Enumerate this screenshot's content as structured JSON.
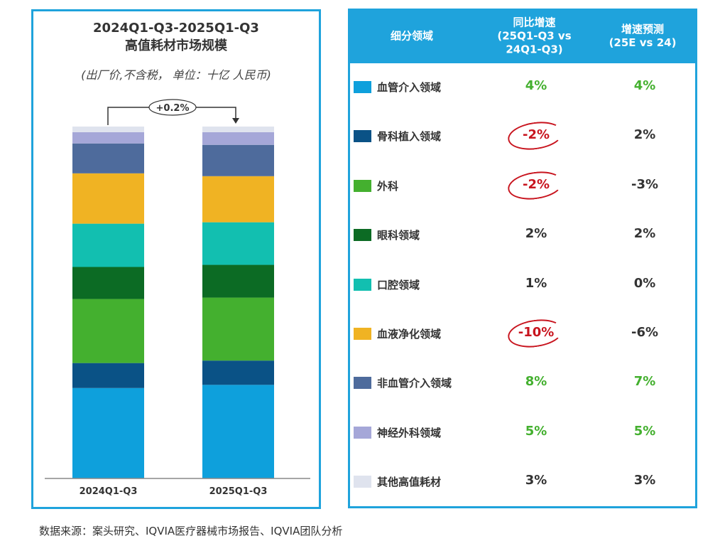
{
  "chart_data": {
    "type": "bar",
    "stacked": true,
    "title": "2024Q1-Q3-2025Q1-Q3 高值耗材市场规模",
    "title_line1": "2024Q1-Q3-2025Q1-Q3",
    "title_line2": "高值耗材市场规模",
    "subtitle": "(出厂价,不含税， 单位：十亿 人民币)",
    "categories": [
      "2024Q1-Q3",
      "2025Q1-Q3"
    ],
    "growth_annotation": "+0.2%",
    "values_note_unit": "estimated share of bar height, %",
    "series": [
      {
        "name": "血管介入领域",
        "color": "#0ea0dc",
        "values": [
          25.7,
          26.6
        ]
      },
      {
        "name": "骨科植入领域",
        "color": "#0a5286",
        "values": [
          7.1,
          6.9
        ]
      },
      {
        "name": "外科",
        "color": "#44b02f",
        "values": [
          18.2,
          17.9
        ]
      },
      {
        "name": "眼科领域",
        "color": "#0c6b24",
        "values": [
          9.1,
          9.3
        ]
      },
      {
        "name": "口腔领域",
        "color": "#12bfb0",
        "values": [
          12.3,
          12.1
        ]
      },
      {
        "name": "血液净化领域",
        "color": "#f0b323",
        "values": [
          14.3,
          13.1
        ]
      },
      {
        "name": "非血管介入领域",
        "color": "#4e6b9c",
        "values": [
          8.5,
          8.9
        ]
      },
      {
        "name": "神经外科领域",
        "color": "#a5a7d8",
        "values": [
          3.2,
          3.6
        ]
      },
      {
        "name": "其他高值耗材",
        "color": "#dfe3ee",
        "values": [
          1.6,
          1.6
        ]
      }
    ]
  },
  "table": {
    "headers": [
      "细分领域",
      "同比增速\n(25Q1-Q3 vs\n24Q1-Q3)",
      "增速预测\n(25E vs 24)"
    ],
    "rows": [
      {
        "name": "血管介入领域",
        "yoy": "4%",
        "forecast": "4%",
        "yoy_color": "#44b02f",
        "fc_color": "#44b02f",
        "circled": false
      },
      {
        "name": "骨科植入领域",
        "yoy": "-2%",
        "forecast": "2%",
        "yoy_color": "#c8141e",
        "fc_color": "#333333",
        "circled": true
      },
      {
        "name": "外科",
        "yoy": "-2%",
        "forecast": "-3%",
        "yoy_color": "#c8141e",
        "fc_color": "#333333",
        "circled": true
      },
      {
        "name": "眼科领域",
        "yoy": "2%",
        "forecast": "2%",
        "yoy_color": "#333333",
        "fc_color": "#333333",
        "circled": false
      },
      {
        "name": "口腔领域",
        "yoy": "1%",
        "forecast": "0%",
        "yoy_color": "#333333",
        "fc_color": "#333333",
        "circled": false
      },
      {
        "name": "血液净化领域",
        "yoy": "-10%",
        "forecast": "-6%",
        "yoy_color": "#c8141e",
        "fc_color": "#333333",
        "circled": true
      },
      {
        "name": "非血管介入领域",
        "yoy": "8%",
        "forecast": "7%",
        "yoy_color": "#44b02f",
        "fc_color": "#44b02f",
        "circled": false
      },
      {
        "name": "神经外科领域",
        "yoy": "5%",
        "forecast": "5%",
        "yoy_color": "#44b02f",
        "fc_color": "#44b02f",
        "circled": false
      },
      {
        "name": "其他高值耗材",
        "yoy": "3%",
        "forecast": "3%",
        "yoy_color": "#333333",
        "fc_color": "#333333",
        "circled": false
      }
    ]
  },
  "footer": "数据来源：案头研究、IQVIA医疗器械市场报告、IQVIA团队分析"
}
